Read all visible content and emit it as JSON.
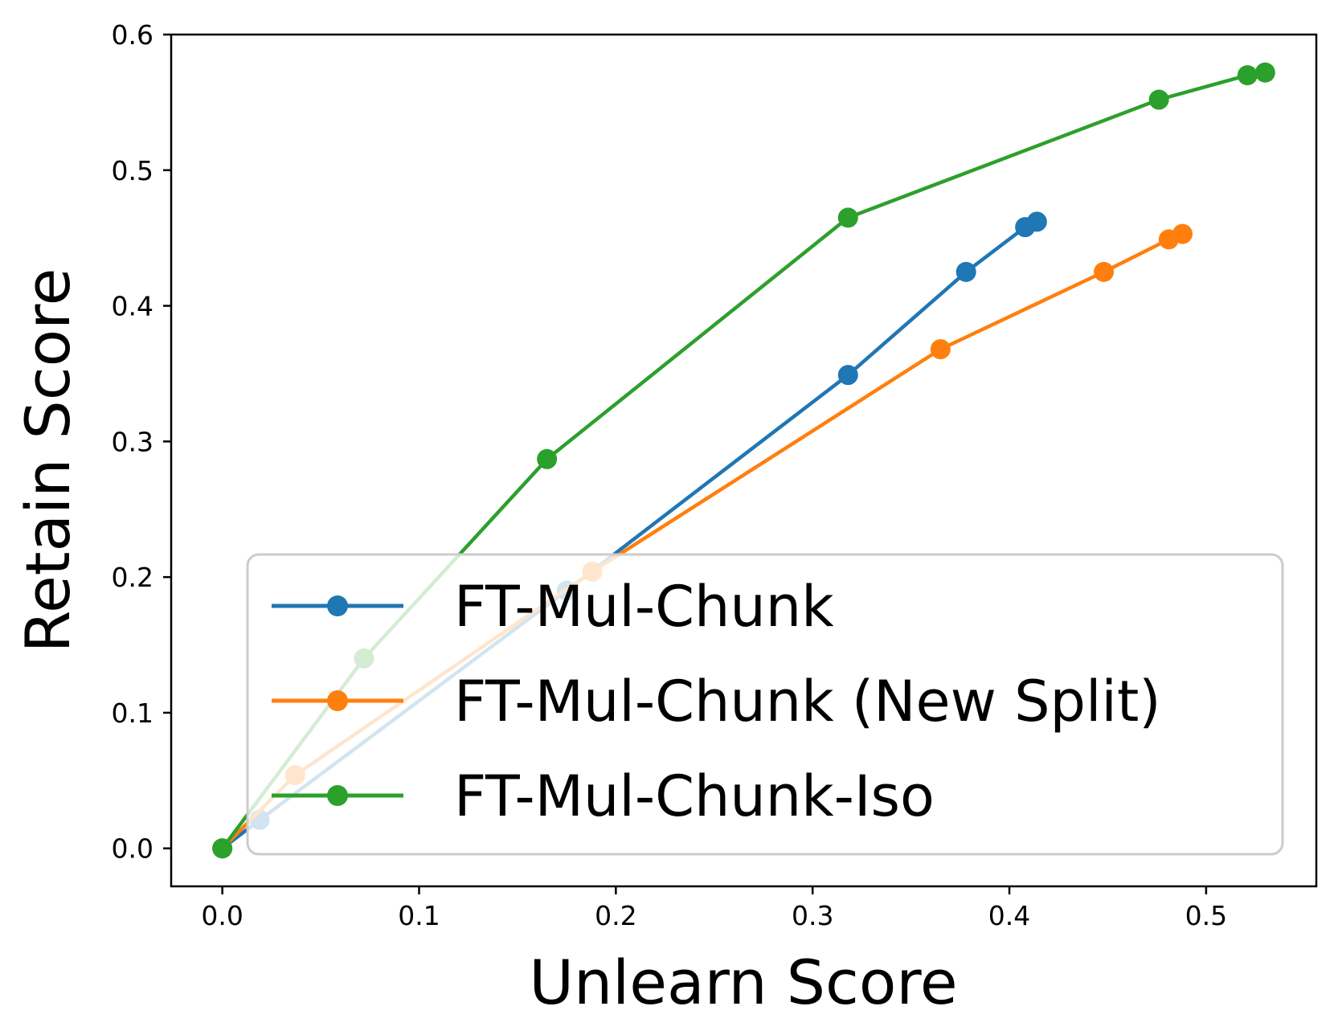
{
  "chart_data": {
    "type": "line",
    "xlabel": "Unlearn Score",
    "ylabel": "Retain Score",
    "xlim": [
      -0.026,
      0.556
    ],
    "ylim": [
      -0.028,
      0.6
    ],
    "xticks": [
      "0.0",
      "0.1",
      "0.2",
      "0.3",
      "0.4",
      "0.5"
    ],
    "yticks": [
      "0.0",
      "0.1",
      "0.2",
      "0.3",
      "0.4",
      "0.5",
      "0.6"
    ],
    "grid": false,
    "legend_position": "lower-right",
    "series": [
      {
        "name": "FT-Mul-Chunk",
        "color": "#1f77b4",
        "x": [
          0.0,
          0.019,
          0.175,
          0.318,
          0.378,
          0.408,
          0.414
        ],
        "y": [
          0.0,
          0.021,
          0.19,
          0.349,
          0.425,
          0.458,
          0.462
        ]
      },
      {
        "name": "FT-Mul-Chunk (New Split)",
        "color": "#ff7f0e",
        "x": [
          0.0,
          0.037,
          0.188,
          0.365,
          0.448,
          0.481,
          0.488
        ],
        "y": [
          0.0,
          0.054,
          0.204,
          0.368,
          0.425,
          0.449,
          0.453
        ]
      },
      {
        "name": "FT-Mul-Chunk-Iso",
        "color": "#2ca02c",
        "x": [
          0.0,
          0.072,
          0.165,
          0.318,
          0.476,
          0.521,
          0.53
        ],
        "y": [
          0.0,
          0.14,
          0.287,
          0.465,
          0.552,
          0.57,
          0.572
        ]
      }
    ]
  }
}
